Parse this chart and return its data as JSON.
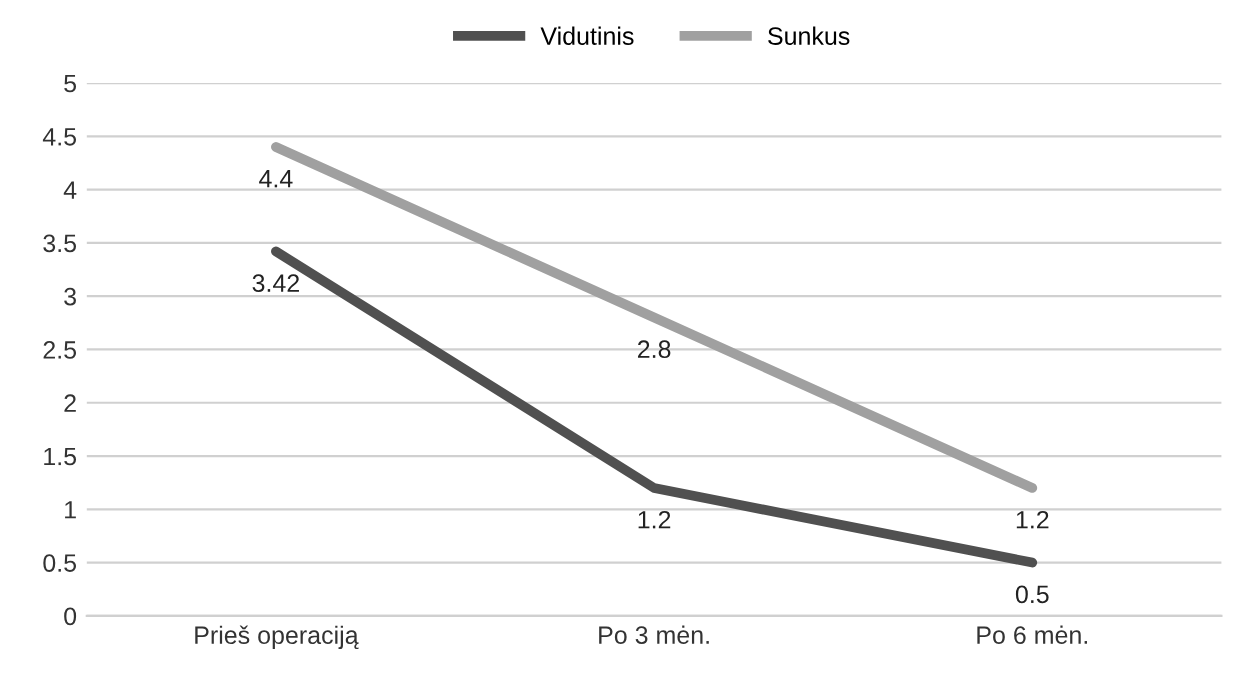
{
  "chart_data": {
    "type": "line",
    "categories": [
      "Prieš operaciją",
      "Po 3 mėn.",
      "Po 6 mėn."
    ],
    "series": [
      {
        "name": "Vidutinis",
        "color": "#505050",
        "values": [
          3.42,
          1.2,
          0.5
        ]
      },
      {
        "name": "Sunkus",
        "color": "#a0a0a0",
        "values": [
          4.4,
          2.8,
          1.2
        ]
      }
    ],
    "ylim": [
      0,
      5
    ],
    "yticks": [
      0,
      0.5,
      1,
      1.5,
      2,
      2.5,
      3,
      3.5,
      4,
      4.5,
      5
    ],
    "grid": "y",
    "legend": "top",
    "data_labels": true,
    "marker": "none",
    "line_style": "solid"
  }
}
